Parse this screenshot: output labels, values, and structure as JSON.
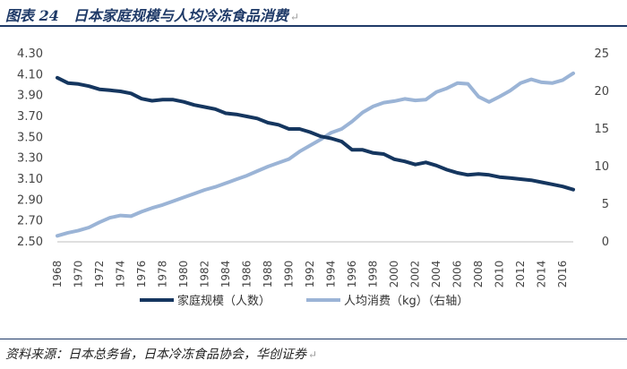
{
  "header": {
    "title": "图表 24　日本家庭规模与人均冷冻食品消费",
    "return_mark": "↵"
  },
  "footer": {
    "source": "资料来源：日本总务省，日本冷冻食品协会，华创证券",
    "return_mark": "↵"
  },
  "colors": {
    "household": "#15365f",
    "frozen": "#9bb4d6",
    "title": "#1f3a68"
  },
  "chart_data": {
    "type": "line",
    "x": [
      1968,
      1969,
      1970,
      1971,
      1972,
      1973,
      1974,
      1975,
      1976,
      1977,
      1978,
      1979,
      1980,
      1981,
      1982,
      1983,
      1984,
      1985,
      1986,
      1987,
      1988,
      1989,
      1990,
      1991,
      1992,
      1993,
      1994,
      1995,
      1996,
      1997,
      1998,
      1999,
      2000,
      2001,
      2002,
      2003,
      2004,
      2005,
      2006,
      2007,
      2008,
      2009,
      2010,
      2011,
      2012,
      2013,
      2014,
      2015,
      2016,
      2017
    ],
    "x_tick_labels": [
      "1968",
      "1970",
      "1972",
      "1974",
      "1976",
      "1978",
      "1980",
      "1982",
      "1984",
      "1986",
      "1988",
      "1990",
      "1992",
      "1994",
      "1996",
      "1998",
      "2000",
      "2002",
      "2004",
      "2006",
      "2008",
      "2010",
      "2012",
      "2014",
      "2016"
    ],
    "left_axis": {
      "ylim": [
        2.5,
        4.3
      ],
      "ticks": [
        "2.50",
        "2.70",
        "2.90",
        "3.10",
        "3.30",
        "3.50",
        "3.70",
        "3.90",
        "4.10",
        "4.30"
      ]
    },
    "right_axis": {
      "ylim": [
        0,
        25
      ],
      "ticks": [
        "0",
        "5",
        "10",
        "15",
        "20",
        "25"
      ]
    },
    "series": [
      {
        "name": "家庭规模（人数）",
        "axis": "left",
        "values": [
          4.07,
          4.02,
          4.01,
          3.99,
          3.96,
          3.95,
          3.94,
          3.92,
          3.87,
          3.85,
          3.86,
          3.86,
          3.84,
          3.81,
          3.79,
          3.77,
          3.73,
          3.72,
          3.7,
          3.68,
          3.64,
          3.62,
          3.58,
          3.58,
          3.55,
          3.51,
          3.49,
          3.46,
          3.38,
          3.38,
          3.35,
          3.34,
          3.29,
          3.27,
          3.24,
          3.26,
          3.23,
          3.19,
          3.16,
          3.14,
          3.15,
          3.14,
          3.12,
          3.11,
          3.1,
          3.09,
          3.07,
          3.05,
          3.03,
          3.0
        ]
      },
      {
        "name": "人均消费（kg）（右轴）",
        "axis": "right",
        "values": [
          0.8,
          1.2,
          1.5,
          1.9,
          2.6,
          3.2,
          3.5,
          3.4,
          4.0,
          4.5,
          4.9,
          5.4,
          5.9,
          6.4,
          6.9,
          7.3,
          7.8,
          8.3,
          8.8,
          9.4,
          10.0,
          10.5,
          11.0,
          12.0,
          12.8,
          13.6,
          14.5,
          15.0,
          16.0,
          17.2,
          18.0,
          18.5,
          18.7,
          19.0,
          18.8,
          18.9,
          19.9,
          20.4,
          21.1,
          21.0,
          19.3,
          18.6,
          19.3,
          20.1,
          21.1,
          21.6,
          21.2,
          21.1,
          21.5,
          22.4
        ]
      }
    ],
    "legend_position": "bottom-center",
    "grid": false
  }
}
